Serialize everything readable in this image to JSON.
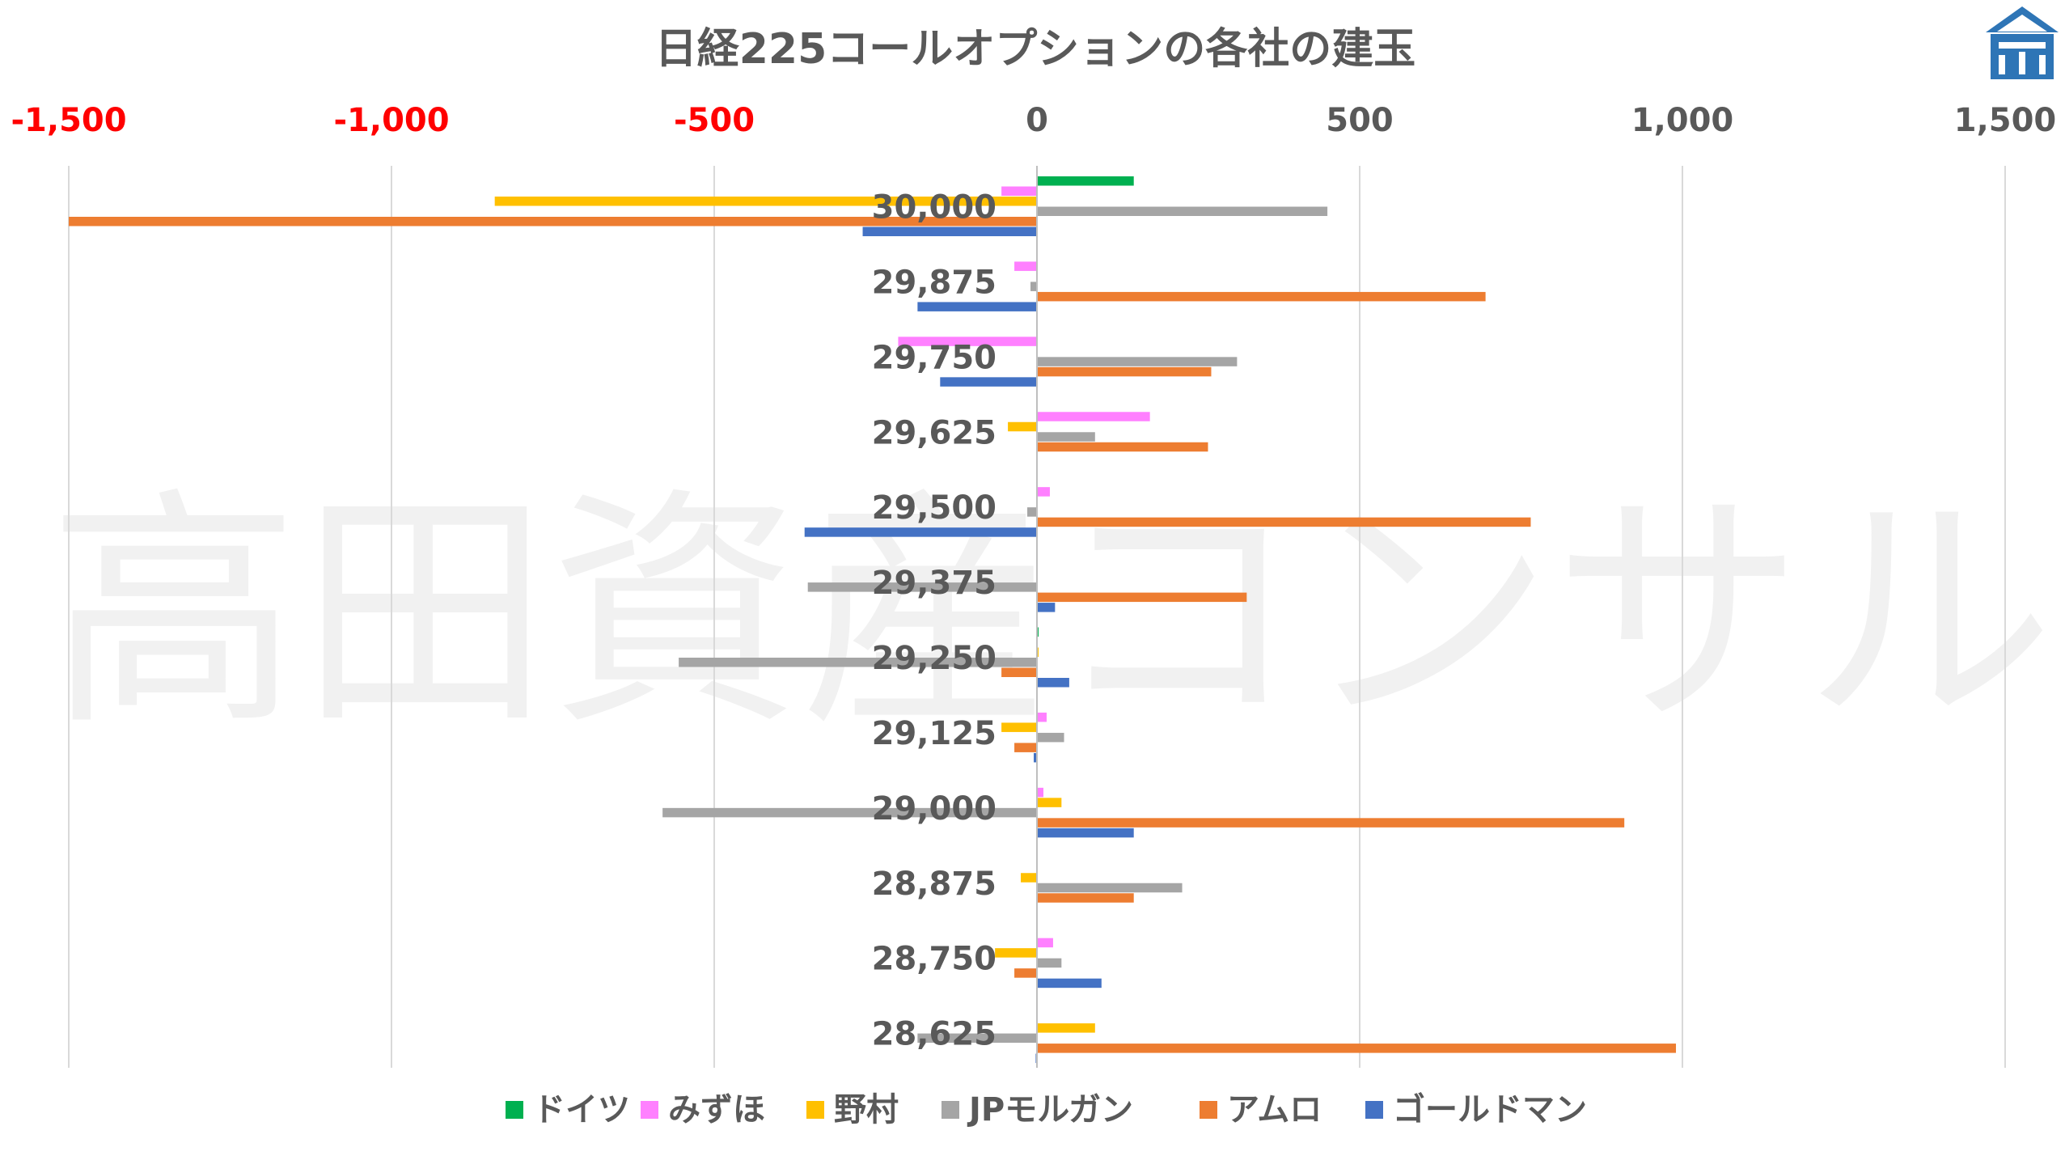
{
  "chart_data": {
    "type": "bar",
    "orientation": "horizontal",
    "title": "日経225コールオプションの各社の建玉",
    "watermark": "高田資産コンサル",
    "xlim": [
      -1500,
      1500
    ],
    "x_ticks": [
      {
        "value": -1500,
        "label": "-1,500",
        "color": "#ff0000"
      },
      {
        "value": -1000,
        "label": "-1,000",
        "color": "#ff0000"
      },
      {
        "value": -500,
        "label": "-500",
        "color": "#ff0000"
      },
      {
        "value": 0,
        "label": "0",
        "color": "#595959"
      },
      {
        "value": 500,
        "label": "500",
        "color": "#595959"
      },
      {
        "value": 1000,
        "label": "1,000",
        "color": "#595959"
      },
      {
        "value": 1500,
        "label": "1,500",
        "color": "#595959"
      }
    ],
    "x_axis_position": "top",
    "grid": true,
    "legend_position": "bottom",
    "categories": [
      "30,000",
      "29,875",
      "29,750",
      "29,625",
      "29,500",
      "29,375",
      "29,250",
      "29,125",
      "29,000",
      "28,875",
      "28,750",
      "28,625"
    ],
    "series": [
      {
        "name": "ドイツ",
        "color": "#00b050",
        "values": [
          150,
          0,
          0,
          0,
          0,
          0,
          2,
          0,
          0,
          0,
          0,
          0
        ]
      },
      {
        "name": "みずほ",
        "color": "#ff80ff",
        "values": [
          -55,
          -35,
          -215,
          175,
          20,
          0,
          0,
          15,
          10,
          0,
          25,
          0
        ]
      },
      {
        "name": "野村",
        "color": "#ffc000",
        "values": [
          -840,
          0,
          0,
          -45,
          0,
          0,
          2,
          -55,
          38,
          -25,
          -65,
          90
        ]
      },
      {
        "name": "JPモルガン",
        "color": "#a5a5a5",
        "values": [
          450,
          -10,
          310,
          90,
          -15,
          -355,
          -555,
          42,
          -580,
          225,
          38,
          -185
        ]
      },
      {
        "name": "アムロ",
        "color": "#ed7d31",
        "values": [
          -1500,
          695,
          270,
          265,
          765,
          325,
          -55,
          -35,
          910,
          150,
          -35,
          990
        ]
      },
      {
        "name": "ゴールドマン",
        "color": "#4472c4",
        "values": [
          -270,
          -185,
          -150,
          0,
          -360,
          28,
          50,
          -5,
          150,
          0,
          100,
          -2
        ]
      }
    ]
  }
}
